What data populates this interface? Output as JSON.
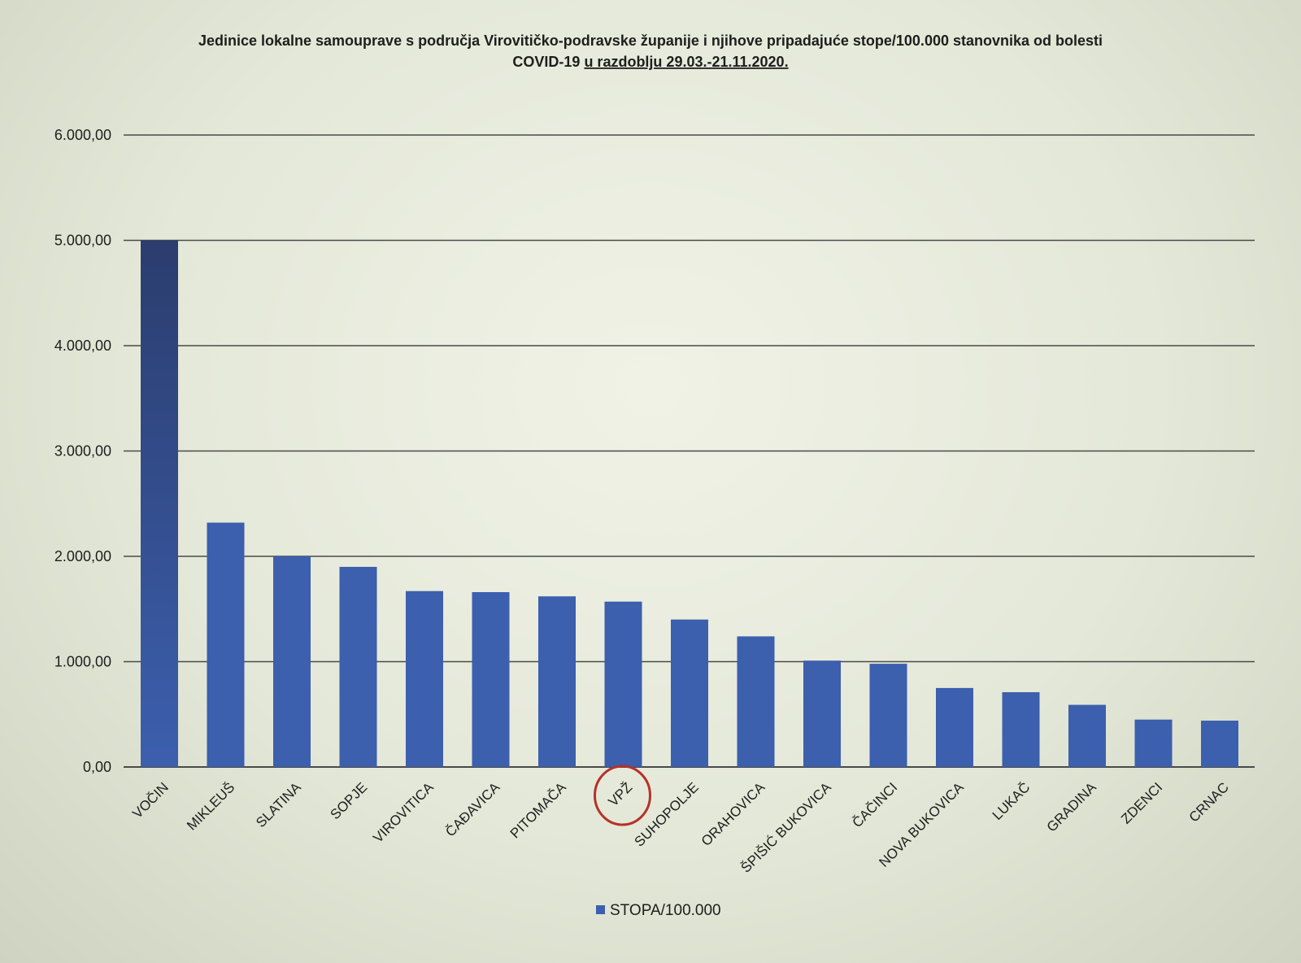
{
  "chart_data": {
    "type": "bar",
    "title": "Jedinice lokalne samouprave s područja Virovitičko-podravske županije i njihove pripadajuće stope/100.000 stanovnika od bolesti",
    "title_line2_prefix": "COVID-19 ",
    "title_line2_underlined": "u razdoblju 29.03.-21.11.2020.",
    "xlabel": "",
    "ylabel": "",
    "ylim": [
      0,
      6000
    ],
    "yticks": [
      "0,00",
      "1.000,00",
      "2.000,00",
      "3.000,00",
      "4.000,00",
      "5.000,00",
      "6.000,00"
    ],
    "ytick_values": [
      0,
      1000,
      2000,
      3000,
      4000,
      5000,
      6000
    ],
    "grid": true,
    "legend_position": "bottom",
    "categories": [
      "VOČIN",
      "MIKLEUŠ",
      "SLATINA",
      "SOPJE",
      "VIROVITICA",
      "ČAĐAVICA",
      "PITOMAČA",
      "VPŽ",
      "SUHOPOLJE",
      "ORAHOVICA",
      "ŠPIŠIĆ BUKOVICA",
      "ČAČINCI",
      "NOVA BUKOVICA",
      "LUKAČ",
      "GRADINA",
      "ZDENCI",
      "CRNAC"
    ],
    "series": [
      {
        "name": "STOPA/100.000",
        "values": [
          5000,
          2320,
          2000,
          1900,
          1670,
          1660,
          1620,
          1570,
          1400,
          1240,
          1010,
          980,
          750,
          710,
          590,
          450,
          440
        ]
      }
    ],
    "highlighted_category": "VPŽ",
    "colors": {
      "bar": "#3c5fae",
      "bar_first": "#2f4a86",
      "grid": "#4a4a4a",
      "highlight_circle": "#b5322a"
    }
  }
}
